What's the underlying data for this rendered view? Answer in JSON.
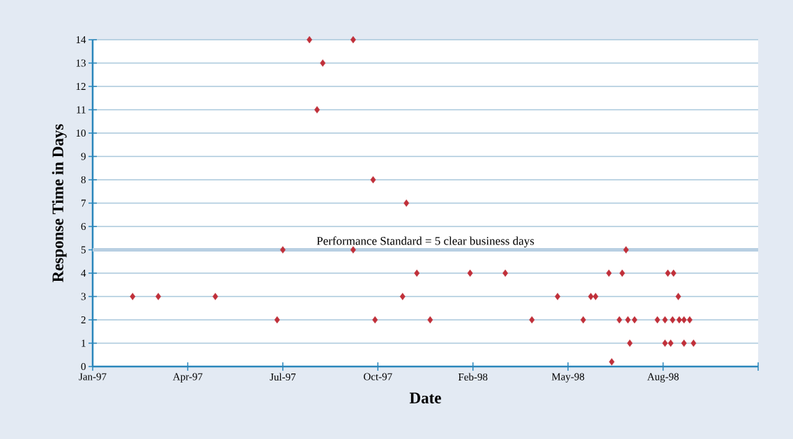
{
  "chart_data": {
    "type": "scatter",
    "xlabel": "Date",
    "ylabel": "Response Time in Days",
    "color": "#c0303a",
    "marker": "diamond",
    "grid": "y",
    "x": [
      "1997-02-12",
      "1997-03-11",
      "1997-05-10",
      "1997-07-14",
      "1997-07-20",
      "1997-08-17",
      "1997-08-25",
      "1997-08-31",
      "1997-10-02",
      "1997-10-02",
      "1997-10-23",
      "1997-10-25",
      "1997-11-23",
      "1997-11-27",
      "1997-12-08",
      "1997-12-22",
      "1998-02-02",
      "1998-03-11",
      "1998-04-08",
      "1998-05-05",
      "1998-06-01",
      "1998-06-09",
      "1998-06-14",
      "1998-06-28",
      "1998-07-01",
      "1998-07-09",
      "1998-07-12",
      "1998-07-16",
      "1998-07-18",
      "1998-07-20",
      "1998-07-25",
      "1998-08-18",
      "1998-08-26",
      "1998-08-26",
      "1998-08-29",
      "1998-09-01",
      "1998-09-03",
      "1998-09-04",
      "1998-09-09",
      "1998-09-10",
      "1998-09-15",
      "1998-09-15",
      "1998-09-21",
      "1998-09-25"
    ],
    "values": [
      3,
      3,
      3,
      2,
      5,
      14,
      11,
      13,
      14,
      5,
      8,
      2,
      3,
      7,
      4,
      2,
      4,
      4,
      2,
      3,
      2,
      3,
      3,
      4,
      0.2,
      2,
      4,
      5,
      2,
      1,
      2,
      2,
      1,
      2,
      4,
      1,
      2,
      4,
      3,
      2,
      1,
      2,
      2,
      1
    ],
    "xlim": [
      "1997-01-01",
      "1998-12-02"
    ],
    "xticks": [
      {
        "value": "1997-01-01",
        "label": "Jan-97"
      },
      {
        "value": "1997-04-11",
        "label": "Apr-97"
      },
      {
        "value": "1997-07-20",
        "label": "Jul-97"
      },
      {
        "value": "1997-10-28",
        "label": "Oct-97"
      },
      {
        "value": "1998-02-05",
        "label": "Feb-98"
      },
      {
        "value": "1998-05-16",
        "label": "May-98"
      },
      {
        "value": "1998-08-24",
        "label": "Aug-98"
      },
      {
        "value": "1998-12-02",
        "label": null
      }
    ],
    "ylim": [
      0,
      14
    ],
    "yticks": [
      0,
      1,
      2,
      3,
      4,
      5,
      6,
      7,
      8,
      9,
      10,
      11,
      12,
      13,
      14
    ],
    "ref_lines": [
      {
        "axis": "y",
        "value": 5,
        "label": "Performance Standard = 5 clear business days",
        "color": "#b8cfe2"
      }
    ]
  }
}
